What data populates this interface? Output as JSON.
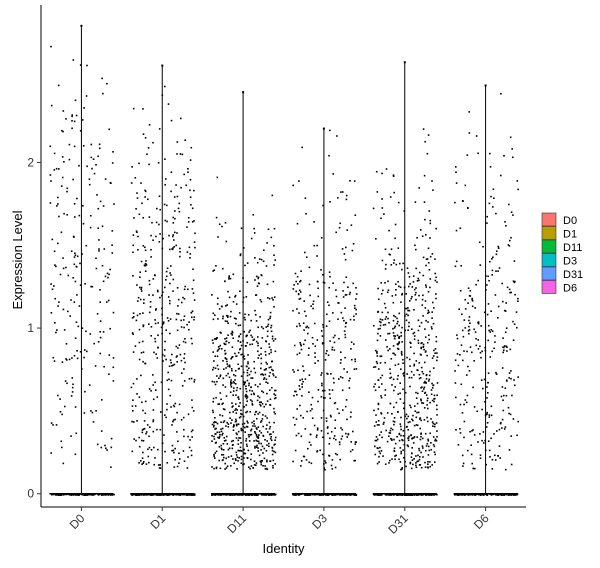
{
  "chart_data": {
    "type": "scatter",
    "subtype": "violin-jitter",
    "title": "",
    "xlabel": "Identity",
    "ylabel": "Expression Level",
    "ylim": [
      -0.08,
      2.95
    ],
    "yticks": [
      0,
      1,
      2
    ],
    "grid": false,
    "legend_position": "right",
    "categories": [
      "D0",
      "D1",
      "D11",
      "D3",
      "D31",
      "D6"
    ],
    "colors": [
      "#F8766D",
      "#B79F00",
      "#00BA38",
      "#00BFC4",
      "#619CFF",
      "#F564E3"
    ],
    "series": [
      {
        "name": "D0",
        "max": 2.83,
        "n_expressing": 230,
        "expr_center": 1.35,
        "expr_spread": 0.7,
        "n_zero": 120
      },
      {
        "name": "D1",
        "max": 2.59,
        "n_expressing": 420,
        "expr_center": 1.05,
        "expr_spread": 0.6,
        "n_zero": 160
      },
      {
        "name": "D11",
        "max": 2.43,
        "n_expressing": 700,
        "expr_center": 0.6,
        "expr_spread": 0.45,
        "n_zero": 170
      },
      {
        "name": "D3",
        "max": 2.21,
        "n_expressing": 330,
        "expr_center": 0.8,
        "expr_spread": 0.55,
        "n_zero": 150
      },
      {
        "name": "D31",
        "max": 2.61,
        "n_expressing": 600,
        "expr_center": 0.75,
        "expr_spread": 0.5,
        "n_zero": 160
      },
      {
        "name": "D6",
        "max": 2.47,
        "n_expressing": 290,
        "expr_center": 0.9,
        "expr_spread": 0.55,
        "n_zero": 130
      }
    ]
  }
}
